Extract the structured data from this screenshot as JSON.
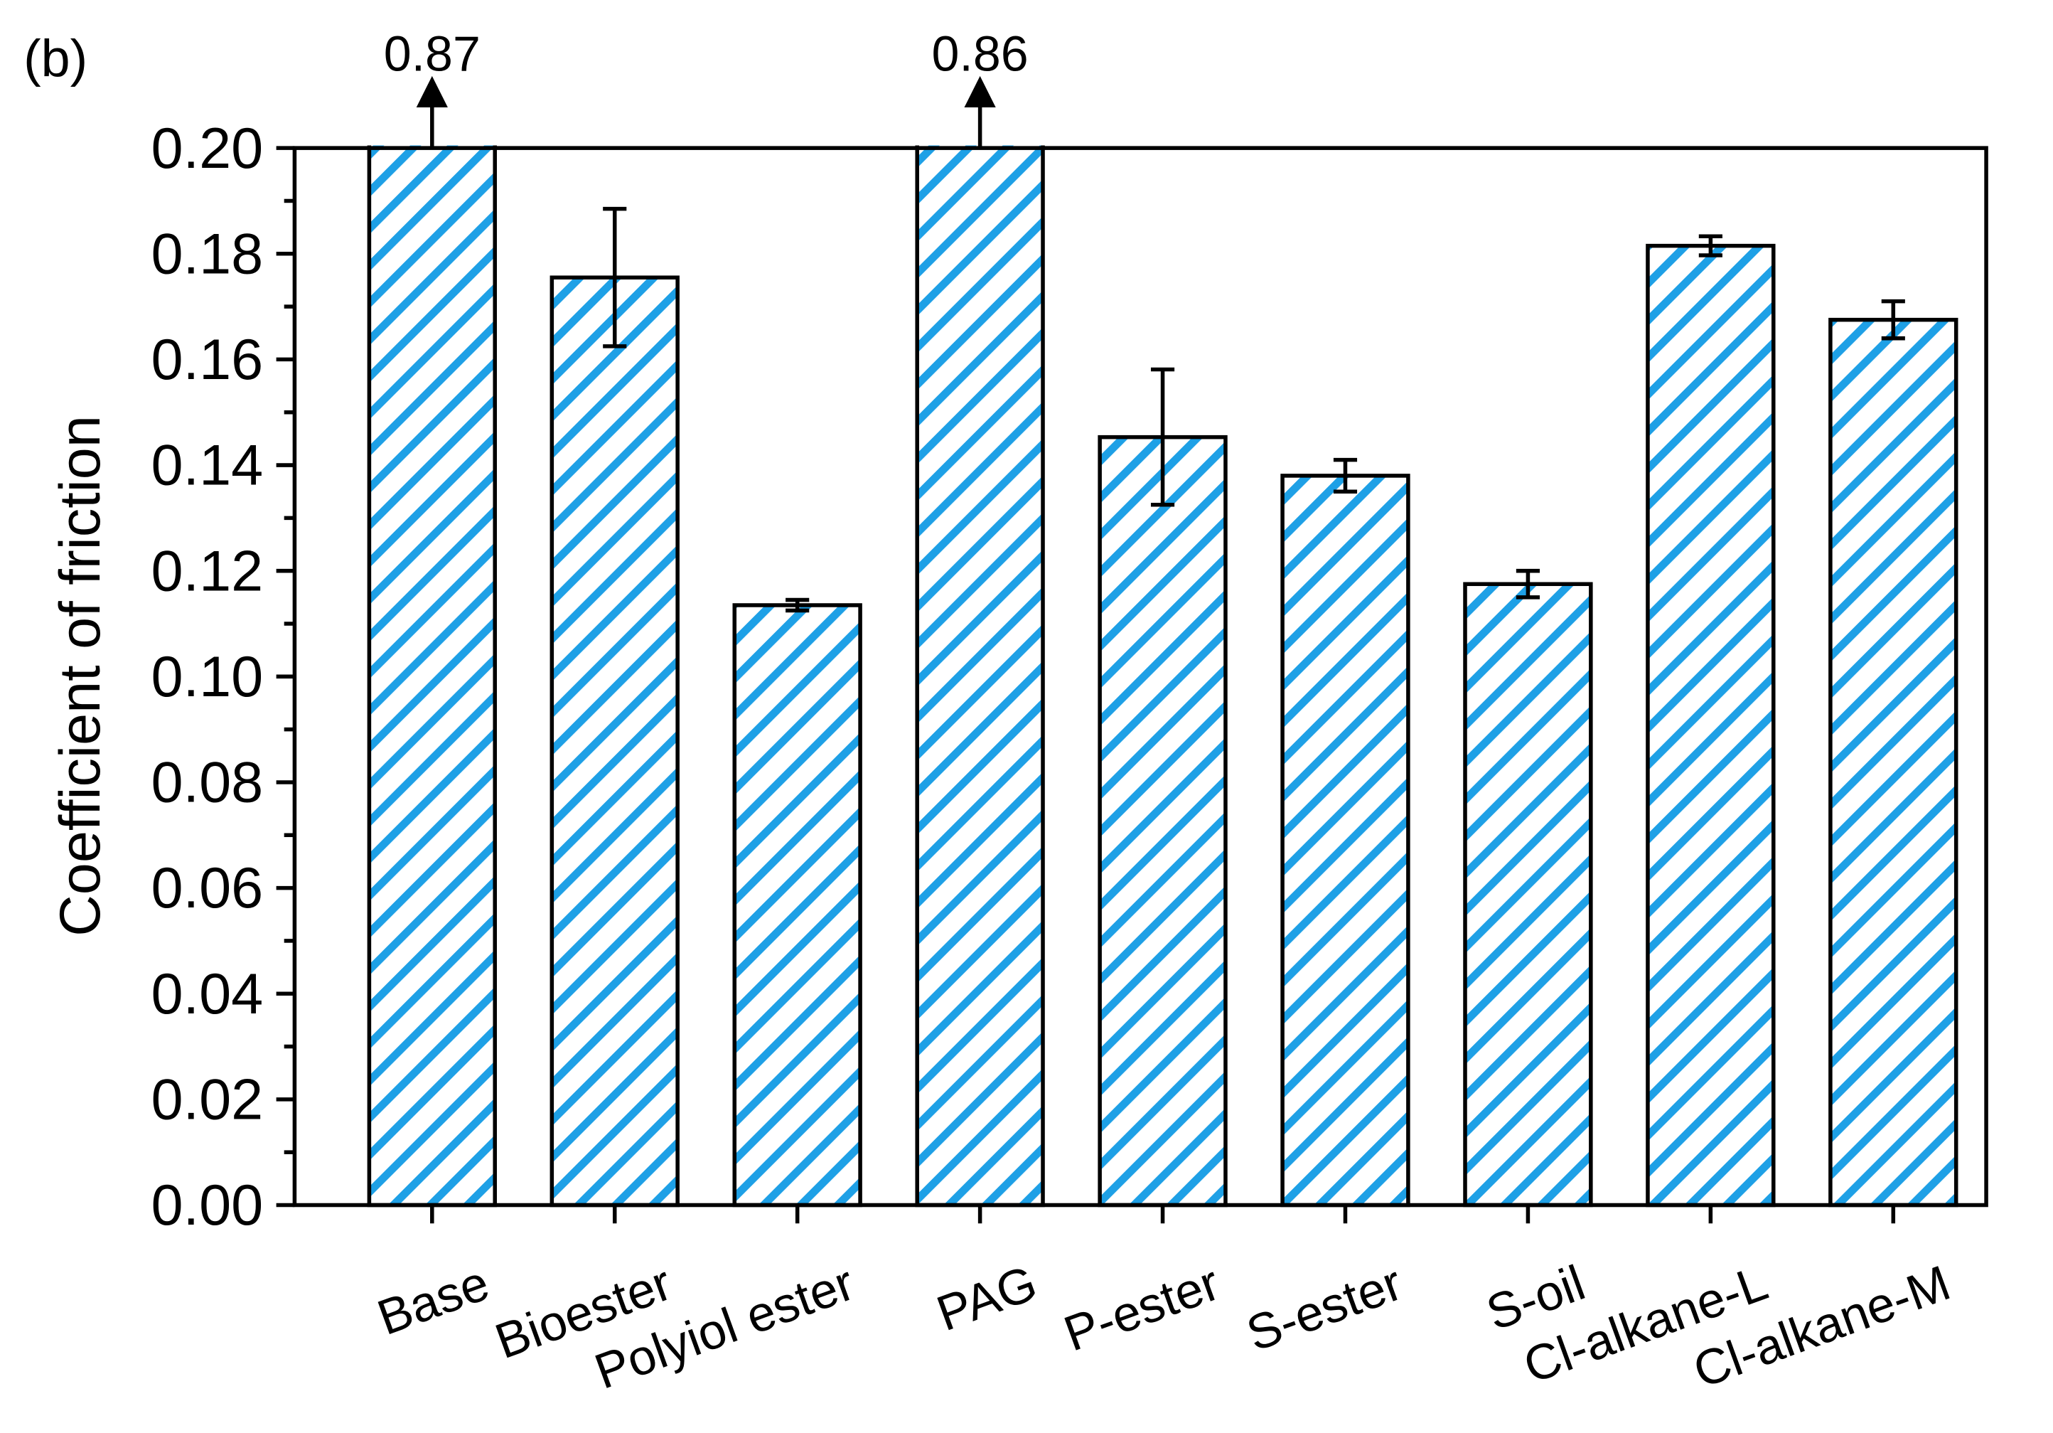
{
  "chart_data": {
    "type": "bar",
    "panel_label": "(b)",
    "y_label": "Coefficient of friction",
    "categories": [
      "Base",
      "Bioester",
      "Polyiol ester",
      "PAG",
      "P-ester",
      "S-ester",
      "S-oil",
      "Cl-alkane-L",
      "Cl-alkane-M"
    ],
    "values": [
      0.87,
      0.1755,
      0.1135,
      0.86,
      0.1453,
      0.138,
      0.1175,
      0.1815,
      0.1675
    ],
    "value_labels": [
      "0.87",
      null,
      null,
      "0.86",
      null,
      null,
      null,
      null,
      null
    ],
    "errors": [
      null,
      0.013,
      0.001,
      null,
      0.0128,
      0.003,
      0.0025,
      0.0018,
      0.0035
    ],
    "color": "#1ea0e6",
    "ylim": [
      0,
      0.2
    ],
    "yticks": [
      {
        "value": 0,
        "label": "0.00"
      },
      {
        "value": 0.02,
        "label": "0.02"
      },
      {
        "value": 0.04,
        "label": "0.04"
      },
      {
        "value": 0.06,
        "label": "0.06"
      },
      {
        "value": 0.08,
        "label": "0.08"
      },
      {
        "value": 0.1,
        "label": "0.10"
      },
      {
        "value": 0.12,
        "label": "0.12"
      },
      {
        "value": 0.14,
        "label": "0.14"
      },
      {
        "value": 0.16,
        "label": "0.16"
      },
      {
        "value": 0.18,
        "label": "0.18"
      },
      {
        "value": 0.2,
        "label": "0.20"
      }
    ],
    "yminorticks": [
      0.01,
      0.03,
      0.05,
      0.07,
      0.09,
      0.11,
      0.13,
      0.15,
      0.17,
      0.19
    ]
  }
}
